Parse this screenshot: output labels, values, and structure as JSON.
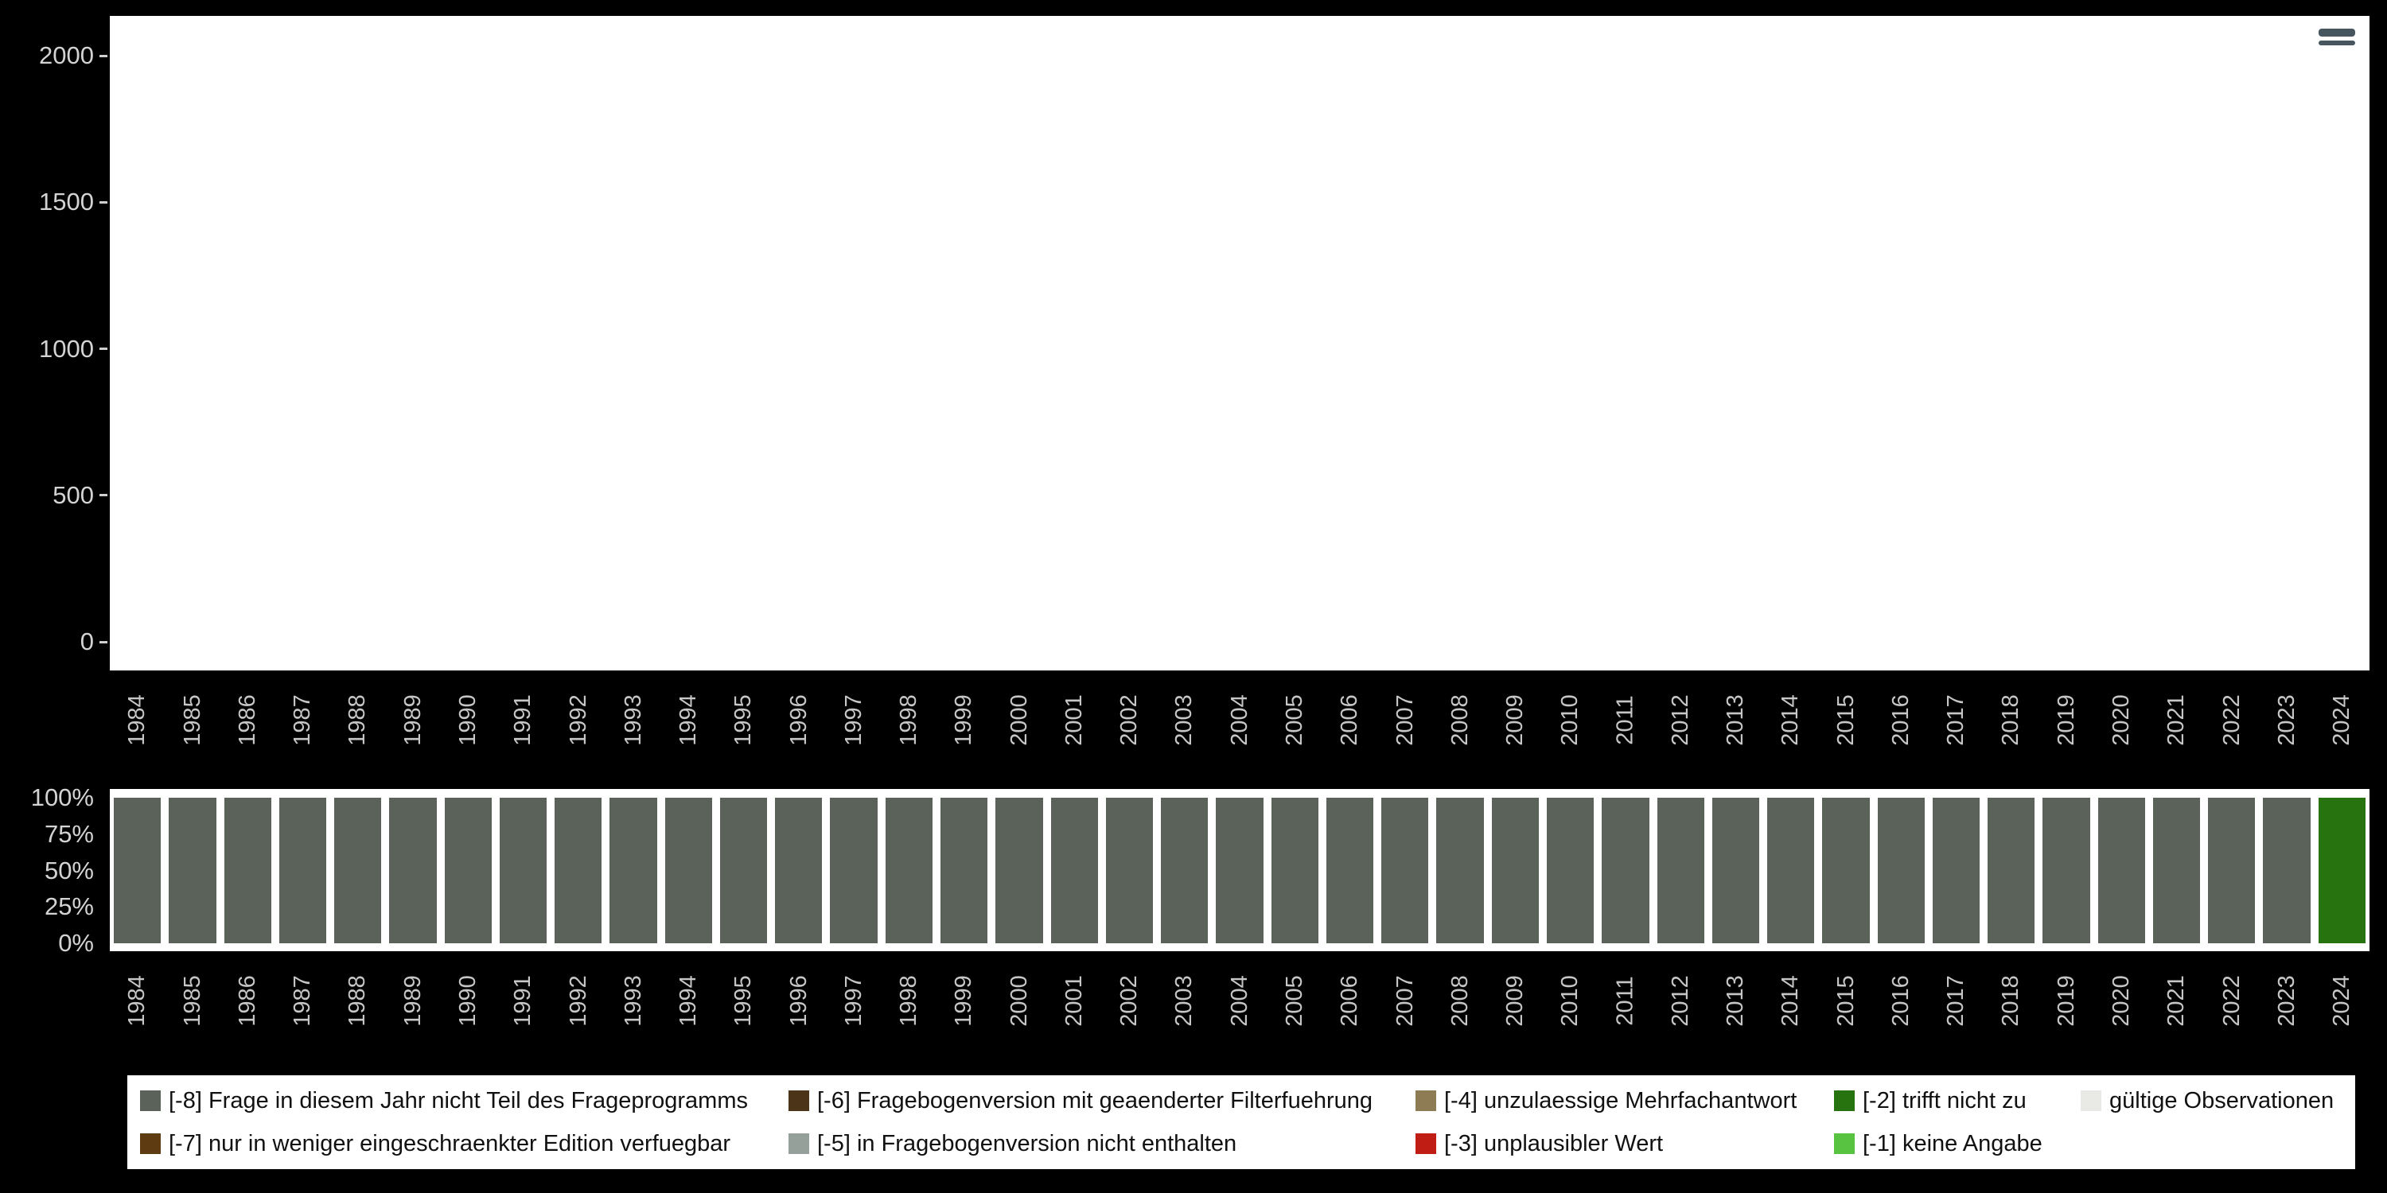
{
  "page": {
    "background": "#000000",
    "panel_background": "#ffffff"
  },
  "toolbar": {
    "icon": "chart-toolbar-icon"
  },
  "chart_data": [
    {
      "type": "bar",
      "title": "",
      "xlabel": "",
      "ylabel": "",
      "x": [
        "1984",
        "1985",
        "1986",
        "1987",
        "1988",
        "1989",
        "1990",
        "1991",
        "1992",
        "1993",
        "1994",
        "1995",
        "1996",
        "1997",
        "1998",
        "1999",
        "2000",
        "2001",
        "2002",
        "2003",
        "2004",
        "2005",
        "2006",
        "2007",
        "2008",
        "2009",
        "2010",
        "2011",
        "2012",
        "2013",
        "2014",
        "2015",
        "2016",
        "2017",
        "2018",
        "2019",
        "2020",
        "2021",
        "2022",
        "2023",
        "2024"
      ],
      "values": [
        0,
        0,
        0,
        0,
        0,
        0,
        0,
        0,
        0,
        0,
        0,
        0,
        0,
        0,
        0,
        0,
        0,
        0,
        0,
        0,
        0,
        0,
        0,
        0,
        0,
        0,
        0,
        0,
        0,
        0,
        0,
        0,
        0,
        0,
        0,
        0,
        0,
        0,
        0,
        0,
        0
      ],
      "ylim": [
        0,
        2000
      ],
      "yticks": [
        0,
        500,
        1000,
        1500,
        2000
      ],
      "grid": false,
      "legend_position": "none"
    },
    {
      "type": "bar",
      "subtype": "percent-stacked",
      "title": "",
      "xlabel": "",
      "ylabel": "",
      "categories": [
        "1984",
        "1985",
        "1986",
        "1987",
        "1988",
        "1989",
        "1990",
        "1991",
        "1992",
        "1993",
        "1994",
        "1995",
        "1996",
        "1997",
        "1998",
        "1999",
        "2000",
        "2001",
        "2002",
        "2003",
        "2004",
        "2005",
        "2006",
        "2007",
        "2008",
        "2009",
        "2010",
        "2011",
        "2012",
        "2013",
        "2014",
        "2015",
        "2016",
        "2017",
        "2018",
        "2019",
        "2020",
        "2021",
        "2022",
        "2023",
        "2024"
      ],
      "yticks": [
        "100%",
        "75%",
        "50%",
        "25%",
        "0%"
      ],
      "ylim_percent": [
        0,
        100
      ],
      "series": [
        {
          "name": "[-8] Frage in diesem Jahr nicht Teil des Frageprogramms",
          "color": "#5a625a",
          "values": [
            100,
            100,
            100,
            100,
            100,
            100,
            100,
            100,
            100,
            100,
            100,
            100,
            100,
            100,
            100,
            100,
            100,
            100,
            100,
            100,
            100,
            100,
            100,
            100,
            100,
            100,
            100,
            100,
            100,
            100,
            100,
            100,
            100,
            100,
            100,
            100,
            100,
            100,
            100,
            100,
            0
          ]
        },
        {
          "name": "[-2] trifft nicht zu",
          "color": "#26730f",
          "values": [
            0,
            0,
            0,
            0,
            0,
            0,
            0,
            0,
            0,
            0,
            0,
            0,
            0,
            0,
            0,
            0,
            0,
            0,
            0,
            0,
            0,
            0,
            0,
            0,
            0,
            0,
            0,
            0,
            0,
            0,
            0,
            0,
            0,
            0,
            0,
            0,
            0,
            0,
            0,
            0,
            100
          ]
        }
      ],
      "legend_position": "bottom"
    }
  ],
  "legend": {
    "items": [
      {
        "label": "[-8] Frage in diesem Jahr nicht Teil des Frageprogramms",
        "color": "#5a625a",
        "col": 0,
        "row": 0
      },
      {
        "label": "[-7] nur in weniger eingeschraenkter Edition verfuegbar",
        "color": "#5e3b10",
        "col": 0,
        "row": 1
      },
      {
        "label": "[-6] Fragebogenversion mit geaenderter Filterfuehrung",
        "color": "#4c3418",
        "col": 1,
        "row": 0
      },
      {
        "label": "[-5] in Fragebogenversion nicht enthalten",
        "color": "#96a09a",
        "col": 1,
        "row": 1
      },
      {
        "label": "[-4] unzulaessige Mehrfachantwort",
        "color": "#8e7c54",
        "col": 2,
        "row": 0
      },
      {
        "label": "[-3] unplausibler Wert",
        "color": "#c01e14",
        "col": 2,
        "row": 1
      },
      {
        "label": "[-2] trifft nicht zu",
        "color": "#26730f",
        "col": 3,
        "row": 0
      },
      {
        "label": "[-1] keine Angabe",
        "color": "#58c340",
        "col": 3,
        "row": 1
      },
      {
        "label": "gültige Observationen",
        "color": "#e9e9e5",
        "col": 4,
        "row": 0
      }
    ]
  }
}
